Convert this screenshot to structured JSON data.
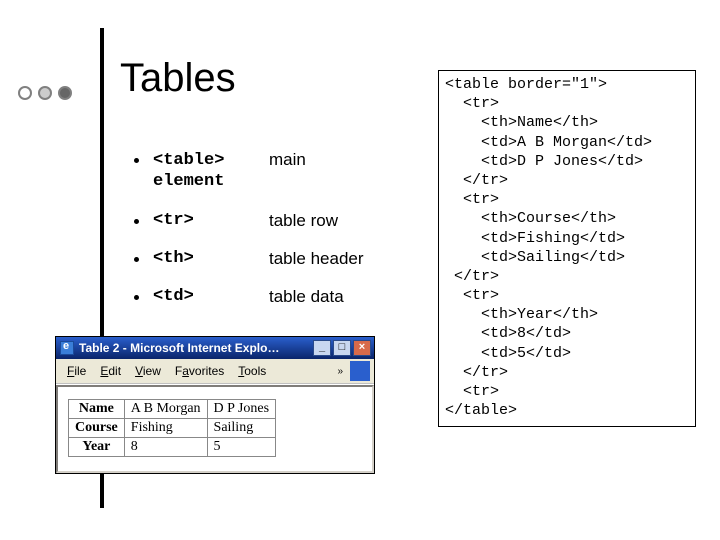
{
  "heading": "Tables",
  "dots": [
    {
      "border": "#808080",
      "fill": "#ffffff"
    },
    {
      "border": "#808080",
      "fill": "#cccccc"
    },
    {
      "border": "#808080",
      "fill": "#666666"
    }
  ],
  "bullets": [
    {
      "term": "<table>\nelement",
      "desc": "main"
    },
    {
      "term": "<tr>",
      "desc": "table row"
    },
    {
      "term": "<th>",
      "desc": "table header"
    },
    {
      "term": "<td>",
      "desc": "table data"
    }
  ],
  "browser": {
    "title": "Table 2 - Microsoft Internet Explo…",
    "menus": [
      {
        "underline": "F",
        "rest": "ile"
      },
      {
        "underline": "E",
        "rest": "dit"
      },
      {
        "underline": "V",
        "rest": "iew"
      },
      {
        "underline": "",
        "rest": "F",
        "underline2": "a",
        "rest2": "vorites"
      },
      {
        "underline": "T",
        "rest": "ools"
      }
    ],
    "more": "»",
    "btn_min": "_",
    "btn_max": "□",
    "btn_close": "×",
    "table": {
      "rows": [
        {
          "header": "Name",
          "c1": "A B Morgan",
          "c2": "D P Jones"
        },
        {
          "header": "Course",
          "c1": "Fishing",
          "c2": "Sailing"
        },
        {
          "header": "Year",
          "c1": "8",
          "c2": "5"
        }
      ]
    }
  },
  "code": "<table border=\"1\">\n  <tr>\n    <th>Name</th>\n    <td>A B Morgan</td>\n    <td>D P Jones</td>\n  </tr>\n  <tr>\n    <th>Course</th>\n    <td>Fishing</td>\n    <td>Sailing</td>\n </tr>\n  <tr>\n    <th>Year</th>\n    <td>8</td>\n    <td>5</td>\n  </tr>\n  <tr>\n</table>"
}
